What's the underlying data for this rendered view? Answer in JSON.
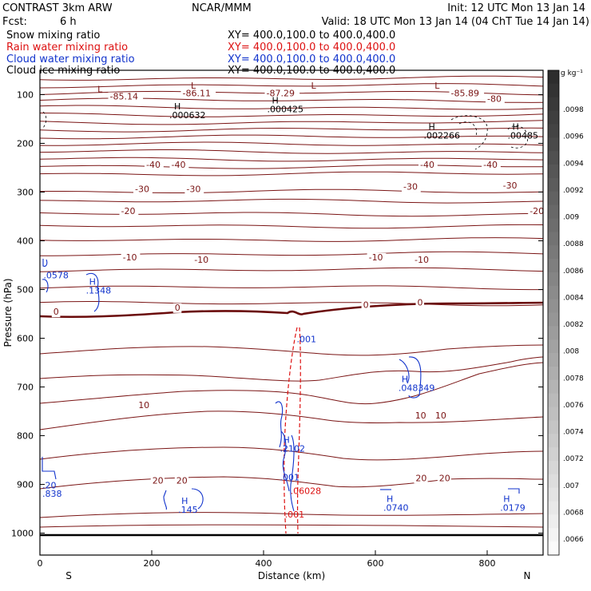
{
  "header": {
    "left_title": "CONTRAST  3km ARW",
    "center_title": "NCAR/MMM",
    "init": "Init: 12 UTC Mon 13 Jan 14",
    "fcst_label": "Fcst:",
    "fcst_value": "6 h",
    "valid": "Valid: 18 UTC Mon 13 Jan 14 (04 ChT Tue 14 Jan 14)"
  },
  "legend": [
    {
      "name": "Snow mixing ratio",
      "color": "#000000",
      "xy": "XY=  400.0,100.0 to 400.0,400.0"
    },
    {
      "name": "Rain water mixing ratio",
      "color": "#dd1111",
      "xy": "XY=  400.0,100.0 to 400.0,400.0"
    },
    {
      "name": "Cloud water mixing ratio",
      "color": "#1133cc",
      "xy": "XY=  400.0,100.0 to 400.0,400.0"
    },
    {
      "name": "Cloud ice mixing ratio",
      "color": "#000000",
      "xy": "XY=  400.0,100.0 to 400.0,400.0"
    }
  ],
  "chart_data": {
    "type": "cross-section",
    "xlabel": "Distance (km)",
    "ylabel": "Pressure (hPa)",
    "x_ticks": [
      0,
      200,
      400,
      600,
      800
    ],
    "y_ticks": [
      100,
      200,
      300,
      400,
      500,
      600,
      700,
      800,
      900,
      1000
    ],
    "xlim": [
      0,
      900
    ],
    "ylim": [
      1045,
      50
    ],
    "x_end_labels": {
      "left": "S",
      "right": "N"
    },
    "colorbar": {
      "unit": "g kg⁻¹",
      "ticks": [
        ".0098",
        ".0096",
        ".0094",
        ".0092",
        ".009",
        ".0088",
        ".0086",
        ".0084",
        ".0082",
        ".008",
        ".0078",
        ".0076",
        ".0074",
        ".0072",
        ".007",
        ".0068",
        ".0066"
      ]
    },
    "temperature_contours": {
      "color": "#7a1414",
      "labels": [
        {
          "text": "-85.14",
          "x": 125,
          "p": 110
        },
        {
          "text": "-86.11",
          "x": 255,
          "p": 103
        },
        {
          "text": "-87.29",
          "x": 405,
          "p": 103
        },
        {
          "text": "-85.89",
          "x": 735,
          "p": 103
        },
        {
          "text": "-80",
          "x": 800,
          "p": 115
        },
        {
          "text": "-40",
          "x": 190,
          "p": 250
        },
        {
          "text": "-40",
          "x": 235,
          "p": 250
        },
        {
          "text": "-40",
          "x": 680,
          "p": 250
        },
        {
          "text": "-40",
          "x": 793,
          "p": 250
        },
        {
          "text": "-30",
          "x": 170,
          "p": 300
        },
        {
          "text": "-30",
          "x": 262,
          "p": 300
        },
        {
          "text": "-30",
          "x": 650,
          "p": 295
        },
        {
          "text": "-30",
          "x": 828,
          "p": 293
        },
        {
          "text": "-20",
          "x": 145,
          "p": 345
        },
        {
          "text": "-20",
          "x": 876,
          "p": 345
        },
        {
          "text": "-10",
          "x": 148,
          "p": 440
        },
        {
          "text": "-10",
          "x": 276,
          "p": 445
        },
        {
          "text": "-10",
          "x": 588,
          "p": 440
        },
        {
          "text": "-10",
          "x": 670,
          "p": 445
        },
        {
          "text": "0",
          "x": 24,
          "p": 552
        },
        {
          "text": "0",
          "x": 241,
          "p": 543
        },
        {
          "text": "0",
          "x": 578,
          "p": 538
        },
        {
          "text": "0",
          "x": 675,
          "p": 533
        },
        {
          "text": "10",
          "x": 176,
          "p": 743
        },
        {
          "text": "10",
          "x": 671,
          "p": 765
        },
        {
          "text": "10",
          "x": 707,
          "p": 765
        },
        {
          "text": "20",
          "x": 201,
          "p": 898
        },
        {
          "text": "20",
          "x": 244,
          "p": 898
        },
        {
          "text": "20",
          "x": 672,
          "p": 893
        },
        {
          "text": "20",
          "x": 714,
          "p": 893
        }
      ],
      "highs_lows": [
        {
          "mark": "L",
          "x": 103,
          "p": 95
        },
        {
          "mark": "L",
          "x": 270,
          "p": 88
        },
        {
          "mark": "L",
          "x": 485,
          "p": 88
        },
        {
          "mark": "L",
          "x": 706,
          "p": 88
        }
      ]
    },
    "ice_labels": [
      {
        "mark": "H",
        "value": ".000632",
        "x": 240,
        "p": 130
      },
      {
        "mark": "H",
        "value": ".000425",
        "x": 415,
        "p": 118
      },
      {
        "mark": "H",
        "value": ".002266",
        "x": 695,
        "p": 172
      },
      {
        "mark": "H",
        "value": ".00485",
        "x": 845,
        "p": 172
      }
    ],
    "cloud_water_labels": [
      {
        "mark": "H",
        "value": ".1348",
        "x": 88,
        "p": 490
      },
      {
        "mark": "",
        "value": ".0578",
        "x": 12,
        "p": 477
      },
      {
        "mark": "H",
        "value": ".048349",
        "x": 647,
        "p": 690
      },
      {
        "mark": "H",
        "value": ".2102",
        "x": 435,
        "p": 815
      },
      {
        "mark": "",
        "value": ".001",
        "x": 465,
        "p": 608
      },
      {
        "mark": "",
        "value": ".001",
        "x": 435,
        "p": 892
      },
      {
        "mark": "H",
        "value": ".145",
        "x": 253,
        "p": 940
      },
      {
        "mark": "H",
        "value": ".0740",
        "x": 620,
        "p": 936
      },
      {
        "mark": "H",
        "value": ".0179",
        "x": 829,
        "p": 936
      },
      {
        "mark": "",
        "value": ".838",
        "x": 10,
        "p": 925
      },
      {
        "mark": "",
        "value": ".20",
        "x": 10,
        "p": 908
      }
    ],
    "rain_labels": [
      {
        "value": ".06028",
        "x": 448,
        "p": 920
      },
      {
        "value": ".001",
        "x": 438,
        "p": 968
      }
    ]
  }
}
